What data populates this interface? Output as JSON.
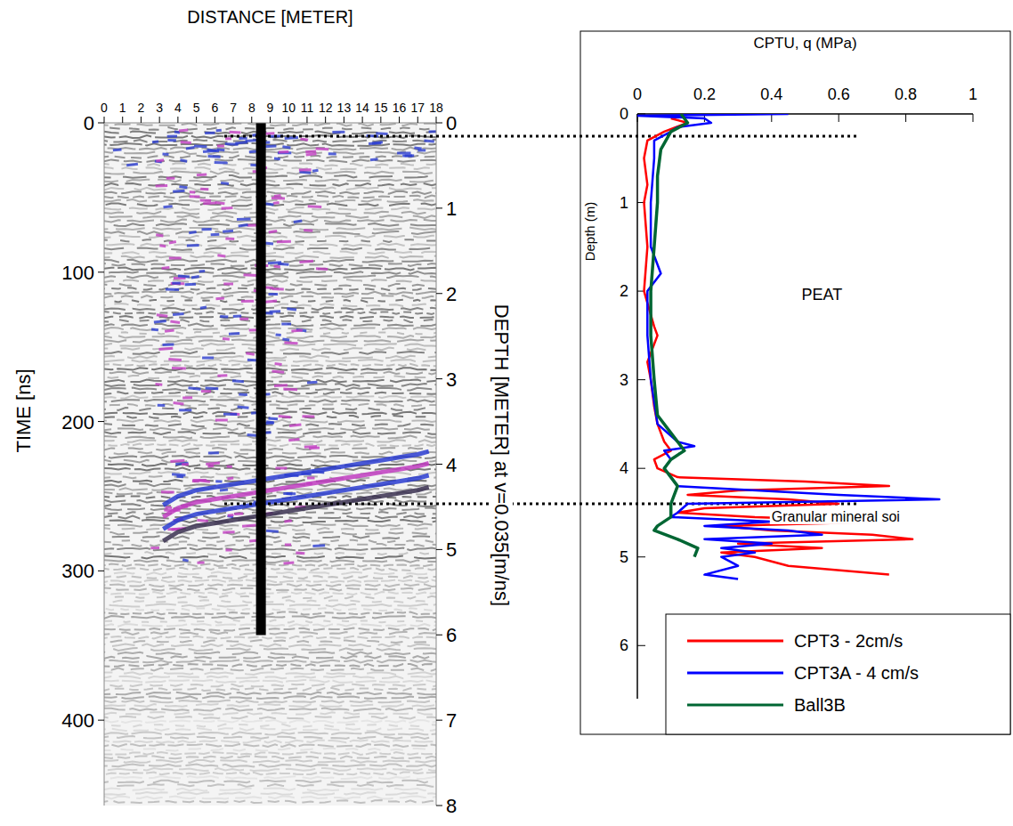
{
  "chart_data": [
    {
      "type": "radargram",
      "x_label": "DISTANCE [METER]",
      "y_label": "TIME [ns]",
      "y2_label": "DEPTH [METER] at v=0.035[m/ns]",
      "xlim": [
        0,
        18
      ],
      "xticks": [
        0,
        1,
        2,
        3,
        4,
        5,
        6,
        7,
        8,
        9,
        10,
        11,
        12,
        13,
        14,
        15,
        16,
        17,
        18
      ],
      "ylim": [
        0,
        457.14
      ],
      "yticks": [
        0,
        100,
        200,
        300,
        400
      ],
      "y2lim": [
        0,
        8
      ],
      "y2ticks": [
        0,
        1,
        2,
        3,
        4,
        5,
        6,
        7,
        8
      ],
      "reflector": {
        "distance": [
          3.2,
          4,
          5,
          6,
          7,
          8,
          9,
          10,
          11,
          12,
          13,
          14,
          15,
          16,
          17,
          17.6
        ],
        "time": [
          268,
          262,
          258,
          256,
          254,
          252,
          250,
          248,
          246,
          244,
          242,
          240,
          238,
          236,
          234,
          232
        ]
      },
      "borehole": {
        "distance": 8.5,
        "time": [
          0,
          343
        ]
      }
    },
    {
      "type": "line",
      "x_label": "CPTU, q (MPa)",
      "y_label": "Depth (m)",
      "xlim": [
        0,
        1
      ],
      "xticks": [
        0,
        0.2,
        0.4,
        0.6,
        0.8,
        1
      ],
      "ylim": [
        0,
        6.6
      ],
      "yticks": [
        0,
        1,
        2,
        3,
        4,
        5,
        6
      ],
      "legend": "lower right",
      "annotations": [
        {
          "text": "PEAT",
          "x": 0.55,
          "y": 2.1
        },
        {
          "text": "Granular mineral soi",
          "x": 0.4,
          "y": 4.6
        }
      ],
      "depth_lines": [
        0.25,
        4.4
      ],
      "series": [
        {
          "name": "CPT3 - 2cm/s",
          "color": "#ff0000",
          "depth": [
            0.05,
            0.1,
            0.2,
            0.3,
            0.5,
            0.8,
            1.0,
            1.5,
            2.0,
            2.4,
            2.5,
            2.8,
            3.0,
            3.3,
            3.5,
            3.7,
            3.8,
            3.9,
            4.0,
            4.1,
            4.15,
            4.2,
            4.25,
            4.3,
            4.35,
            4.4,
            4.45,
            4.5,
            4.55,
            4.6,
            4.65,
            4.7,
            4.75,
            4.8,
            4.85,
            4.9,
            4.95,
            5.0,
            5.1,
            5.2
          ],
          "values": [
            0.1,
            0.15,
            0.08,
            0.03,
            0.02,
            0.03,
            0.02,
            0.03,
            0.02,
            0.05,
            0.06,
            0.03,
            0.04,
            0.05,
            0.06,
            0.08,
            0.1,
            0.05,
            0.06,
            0.12,
            0.5,
            0.75,
            0.3,
            0.15,
            0.45,
            0.6,
            0.2,
            0.12,
            0.35,
            0.75,
            0.25,
            0.4,
            0.7,
            0.82,
            0.3,
            0.55,
            0.25,
            0.35,
            0.45,
            0.75
          ]
        },
        {
          "name": "CPT3A - 4 cm/s",
          "color": "#0000ff",
          "depth": [
            0.0,
            0.02,
            0.05,
            0.1,
            0.15,
            0.2,
            0.3,
            0.5,
            1.0,
            1.5,
            1.8,
            2.0,
            2.5,
            3.0,
            3.5,
            3.7,
            3.75,
            3.8,
            3.9,
            4.0,
            4.2,
            4.3,
            4.35,
            4.4,
            4.5,
            4.55,
            4.6,
            4.65,
            4.7,
            4.75,
            4.8,
            4.85,
            4.9,
            4.95,
            5.0,
            5.1,
            5.2,
            5.25
          ],
          "values": [
            0.45,
            0.0,
            0.2,
            0.22,
            0.12,
            0.1,
            0.05,
            0.05,
            0.04,
            0.04,
            0.07,
            0.03,
            0.03,
            0.04,
            0.06,
            0.12,
            0.17,
            0.08,
            0.1,
            0.08,
            0.12,
            0.6,
            0.9,
            0.15,
            0.12,
            0.1,
            0.4,
            0.2,
            0.45,
            0.55,
            0.2,
            0.4,
            0.25,
            0.35,
            0.25,
            0.3,
            0.2,
            0.3
          ]
        },
        {
          "name": "Ball3B",
          "color": "#006633",
          "depth": [
            0.0,
            0.1,
            0.2,
            0.4,
            0.7,
            1.0,
            1.5,
            2.0,
            2.5,
            3.0,
            3.4,
            3.6,
            3.8,
            3.9,
            4.0,
            4.1,
            4.2,
            4.4,
            4.55,
            4.65,
            4.7,
            4.8,
            4.9,
            5.0
          ],
          "values": [
            0.13,
            0.15,
            0.1,
            0.07,
            0.06,
            0.06,
            0.05,
            0.04,
            0.04,
            0.05,
            0.06,
            0.1,
            0.14,
            0.1,
            0.08,
            0.1,
            0.12,
            0.1,
            0.1,
            0.06,
            0.05,
            0.12,
            0.18,
            0.17
          ]
        }
      ]
    }
  ]
}
